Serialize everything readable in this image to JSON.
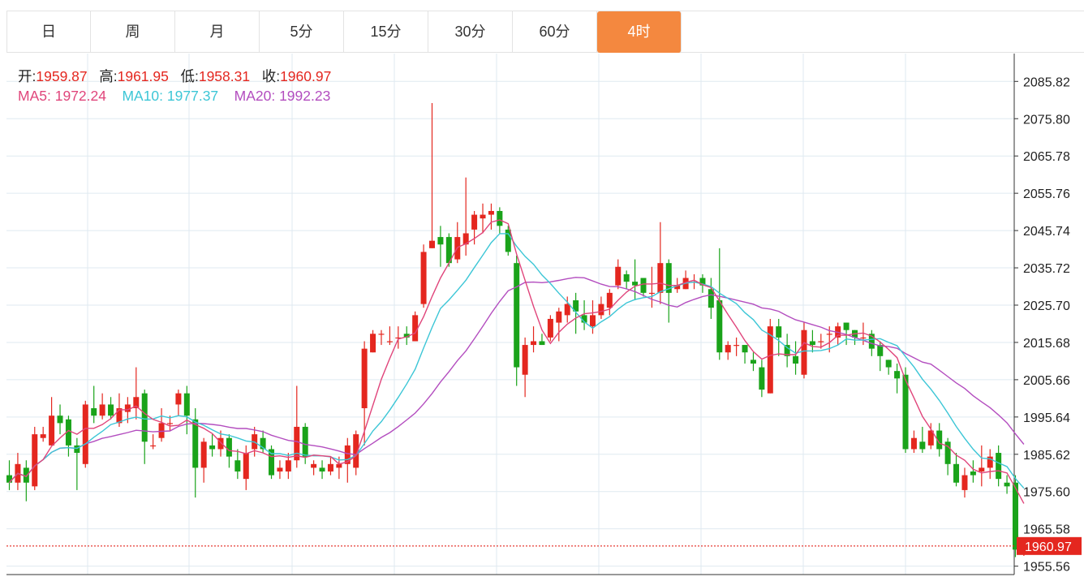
{
  "tabs": [
    {
      "label": "日",
      "active": false
    },
    {
      "label": "周",
      "active": false
    },
    {
      "label": "月",
      "active": false
    },
    {
      "label": "5分",
      "active": false
    },
    {
      "label": "15分",
      "active": false
    },
    {
      "label": "30分",
      "active": false
    },
    {
      "label": "60分",
      "active": false
    },
    {
      "label": "4时",
      "active": true
    }
  ],
  "ohlc": {
    "open_label": "开:",
    "open": "1959.87",
    "high_label": "高:",
    "high": "1961.95",
    "low_label": "低:",
    "low": "1958.31",
    "close_label": "收:",
    "close": "1960.97"
  },
  "ma": {
    "ma5_label": "MA5:",
    "ma5": "1972.24",
    "ma10_label": "MA10:",
    "ma10": "1977.37",
    "ma20_label": "MA20:",
    "ma20": "1992.23"
  },
  "colors": {
    "up": "#e4271f",
    "down": "#1aa31a",
    "ma5": "#e0457b",
    "ma10": "#3cc6d6",
    "ma20": "#b34dbf",
    "accent": "#f4883f",
    "grid": "#dfeaf0",
    "price_tag": "#e4271f"
  },
  "chart_data": {
    "type": "candlestick",
    "y_ticks": [
      "2085.82",
      "2075.80",
      "2065.78",
      "2055.76",
      "2045.74",
      "2035.72",
      "2025.70",
      "2015.68",
      "2005.66",
      "1995.64",
      "1985.62",
      "1975.60",
      "1965.58",
      "1955.56"
    ],
    "ylim": [
      1953.3,
      2093.3
    ],
    "last_price": "1960.97",
    "candles": [
      [
        1980,
        1978,
        1984,
        1976
      ],
      [
        1978,
        1983,
        1986,
        1976
      ],
      [
        1982,
        1978,
        1984,
        1973
      ],
      [
        1977,
        1991,
        1993,
        1976
      ],
      [
        1990,
        1991,
        1993,
        1989
      ],
      [
        1988,
        1996,
        2001,
        1988
      ],
      [
        1996,
        1994,
        1999,
        1991
      ],
      [
        1995,
        1988,
        1996,
        1985
      ],
      [
        1988,
        1986,
        1990,
        1976
      ],
      [
        1983,
        1999,
        2000,
        1982
      ],
      [
        1998,
        1996,
        2004,
        1994
      ],
      [
        1996,
        1999,
        2002,
        1995
      ],
      [
        1999,
        1996,
        2001,
        1995
      ],
      [
        1994,
        1998,
        2002,
        1993
      ],
      [
        1997,
        1999,
        2001,
        1994
      ],
      [
        1998,
        2001,
        2009,
        1995
      ],
      [
        2002,
        1989,
        2003,
        1983
      ],
      [
        1988,
        1988,
        1991,
        1987
      ],
      [
        1990,
        1994,
        1998,
        1989
      ],
      [
        1994,
        1994,
        1996,
        1992
      ],
      [
        1999,
        2002,
        2003,
        1996
      ],
      [
        2002,
        1996,
        2004,
        1991
      ],
      [
        1995,
        1982,
        1998,
        1974
      ],
      [
        1982,
        1989,
        1990,
        1978
      ],
      [
        1988,
        1987,
        1991,
        1985
      ],
      [
        1987,
        1990,
        1992,
        1985
      ],
      [
        1990,
        1985,
        1991,
        1982
      ],
      [
        1984,
        1981,
        1987,
        1979
      ],
      [
        1979,
        1986,
        1988,
        1976
      ],
      [
        1987,
        1991,
        1993,
        1985
      ],
      [
        1990,
        1987,
        1992,
        1986
      ],
      [
        1987,
        1980,
        1988,
        1979
      ],
      [
        1981,
        1982,
        1984,
        1979
      ],
      [
        1981,
        1984,
        1986,
        1979
      ],
      [
        1984,
        1993,
        2004,
        1982
      ],
      [
        1993,
        1985,
        1994,
        1983
      ],
      [
        1982,
        1983,
        1984,
        1980
      ],
      [
        1982,
        1981,
        1984,
        1979
      ],
      [
        1981,
        1983,
        1985,
        1980
      ],
      [
        1982,
        1983,
        1985,
        1979
      ],
      [
        1983,
        1988,
        1990,
        1978
      ],
      [
        1982,
        1991,
        1992,
        1980
      ],
      [
        1998,
        2014,
        2016,
        1988
      ],
      [
        2013,
        2018,
        2019,
        2013
      ],
      [
        2018,
        2018,
        2019,
        2015
      ],
      [
        2016,
        2016,
        2020,
        2015
      ],
      [
        2017,
        2017,
        2020,
        2014
      ],
      [
        2018,
        2017,
        2020,
        2015
      ],
      [
        2016,
        2023,
        2024,
        2016
      ],
      [
        2026,
        2040,
        2042,
        2025
      ],
      [
        2041,
        2043,
        2080,
        2041
      ],
      [
        2044,
        2042,
        2047,
        2036
      ],
      [
        2044,
        2037,
        2045,
        2036
      ],
      [
        2038,
        2044,
        2048,
        2037
      ],
      [
        2042,
        2045,
        2060,
        2039
      ],
      [
        2046,
        2050,
        2051,
        2042
      ],
      [
        2049,
        2050,
        2053,
        2045
      ],
      [
        2050,
        2051,
        2053,
        2046
      ],
      [
        2051,
        2047,
        2052,
        2045
      ],
      [
        2046,
        2040,
        2047,
        2039
      ],
      [
        2037,
        2009,
        2039,
        2004
      ],
      [
        2007,
        2015,
        2017,
        2001
      ],
      [
        2015,
        2016,
        2020,
        2013
      ],
      [
        2016,
        2015,
        2018,
        2015
      ],
      [
        2017,
        2022,
        2023,
        2016
      ],
      [
        2021,
        2024,
        2025,
        2016
      ],
      [
        2023,
        2026,
        2028,
        2021
      ],
      [
        2027,
        2024,
        2029,
        2018
      ],
      [
        2023,
        2021,
        2027,
        2019
      ],
      [
        2020,
        2023,
        2027,
        2018
      ],
      [
        2023,
        2026,
        2028,
        2022
      ],
      [
        2025,
        2029,
        2030,
        2023
      ],
      [
        2031,
        2036,
        2038,
        2030
      ],
      [
        2034,
        2032,
        2035,
        2030
      ],
      [
        2032,
        2031,
        2038,
        2027
      ],
      [
        2033,
        2029,
        2032,
        2028
      ],
      [
        2029,
        2029,
        2036,
        2025
      ],
      [
        2029,
        2037,
        2048,
        2026
      ],
      [
        2037,
        2029,
        2038,
        2021
      ],
      [
        2030,
        2031,
        2033,
        2029
      ],
      [
        2030,
        2033,
        2035,
        2030
      ],
      [
        2032,
        2032,
        2034,
        2030
      ],
      [
        2033,
        2031,
        2034,
        2029
      ],
      [
        2030,
        2025,
        2033,
        2022
      ],
      [
        2027,
        2013,
        2041,
        2011
      ],
      [
        2013,
        2015,
        2016,
        2011
      ],
      [
        2015,
        2015,
        2017,
        2012
      ],
      [
        2015,
        2013,
        2015,
        2010
      ],
      [
        2011,
        2010,
        2013,
        2008
      ],
      [
        2009,
        2003,
        2011,
        2001
      ],
      [
        2002,
        2020,
        2022,
        2002
      ],
      [
        2020,
        2017,
        2022,
        2012
      ],
      [
        2015,
        2012,
        2018,
        2009
      ],
      [
        2012,
        2010,
        2016,
        2007
      ],
      [
        2007,
        2019,
        2021,
        2006
      ],
      [
        2016,
        2015,
        2019,
        2013
      ],
      [
        2016,
        2016,
        2018,
        2014
      ],
      [
        2018,
        2018,
        2020,
        2013
      ],
      [
        2017,
        2020,
        2021,
        2015
      ],
      [
        2021,
        2019,
        2021,
        2015
      ],
      [
        2019,
        2017,
        2019,
        2015
      ],
      [
        2017,
        2017,
        2021,
        2015
      ],
      [
        2018,
        2014,
        2019,
        2012
      ],
      [
        2015,
        2012,
        2016,
        2008
      ],
      [
        2011,
        2009,
        2011,
        2007
      ],
      [
        2008,
        2006,
        2010,
        2002
      ],
      [
        2007,
        1987,
        2009,
        1986
      ],
      [
        1987,
        1990,
        1992,
        1986
      ],
      [
        1989,
        1987,
        1993,
        1986
      ],
      [
        1988,
        1992,
        1994,
        1987
      ],
      [
        1992,
        1987,
        1994,
        1985
      ],
      [
        1989,
        1983,
        1990,
        1980
      ],
      [
        1983,
        1978,
        1986,
        1977
      ],
      [
        1976,
        1980,
        1982,
        1974
      ],
      [
        1981,
        1980,
        1984,
        1978
      ],
      [
        1981,
        1982,
        1988,
        1977
      ],
      [
        1982,
        1985,
        1987,
        1979
      ],
      [
        1986,
        1979,
        1988,
        1977
      ],
      [
        1978,
        1977,
        1980,
        1975
      ],
      [
        1978,
        1960,
        1980,
        1958
      ],
      [
        1959.87,
        1960.97,
        1961.95,
        1958.31
      ]
    ]
  }
}
